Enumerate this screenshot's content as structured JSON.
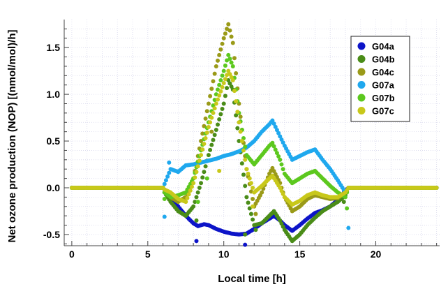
{
  "chart_data": {
    "type": "scatter",
    "title": "",
    "xlabel": "Local time [h]",
    "ylabel": "Net ozone production (NOP) [(nmol/mol)/h]",
    "xlim": [
      -0.5,
      24.2
    ],
    "ylim": [
      -0.62,
      1.8
    ],
    "x_ticks": [
      0,
      5,
      10,
      15,
      20
    ],
    "y_ticks": [
      -0.5,
      0.0,
      0.5,
      1.0,
      1.5
    ],
    "x_tick_labels": [
      "0",
      "5",
      "10",
      "15",
      "20"
    ],
    "y_tick_labels": [
      "-0.5",
      "0.0",
      "0.5",
      "1.0",
      "1.5"
    ],
    "grid": true,
    "legend_position": "top-right",
    "series": [
      {
        "name": "G04a",
        "color": "#0d14c8",
        "points": [
          [
            0,
            0
          ],
          [
            1,
            0
          ],
          [
            2,
            0
          ],
          [
            3,
            0
          ],
          [
            4,
            0
          ],
          [
            5,
            0
          ],
          [
            6,
            0
          ],
          [
            6.1,
            -0.02
          ],
          [
            6.5,
            -0.1
          ],
          [
            7,
            -0.2
          ],
          [
            7.5,
            -0.3
          ],
          [
            8,
            -0.38
          ],
          [
            8.3,
            -0.41
          ],
          [
            8.7,
            -0.39
          ],
          [
            9,
            -0.4
          ],
          [
            9.5,
            -0.44
          ],
          [
            10,
            -0.47
          ],
          [
            10.5,
            -0.49
          ],
          [
            11,
            -0.5
          ],
          [
            11.5,
            -0.49
          ],
          [
            12,
            -0.44
          ],
          [
            12.5,
            -0.38
          ],
          [
            13,
            -0.33
          ],
          [
            13.3,
            -0.3
          ],
          [
            13.7,
            -0.35
          ],
          [
            14,
            -0.4
          ],
          [
            14.5,
            -0.46
          ],
          [
            15,
            -0.4
          ],
          [
            15.5,
            -0.33
          ],
          [
            16,
            -0.27
          ],
          [
            16.5,
            -0.24
          ],
          [
            17,
            -0.2
          ],
          [
            17.5,
            -0.13
          ],
          [
            18,
            -0.03
          ],
          [
            18.2,
            0
          ],
          [
            19,
            0
          ],
          [
            20,
            0
          ],
          [
            21,
            0
          ],
          [
            22,
            0
          ],
          [
            23,
            0
          ],
          [
            24,
            0
          ]
        ],
        "outliers": [
          [
            6.1,
            -0.05
          ],
          [
            8.2,
            -0.57
          ],
          [
            11.4,
            -0.61
          ]
        ]
      },
      {
        "name": "G04b",
        "color": "#4a8c18",
        "points": [
          [
            0,
            0
          ],
          [
            1,
            0
          ],
          [
            2,
            0
          ],
          [
            3,
            0
          ],
          [
            4,
            0
          ],
          [
            5,
            0
          ],
          [
            6,
            0
          ],
          [
            6.1,
            -0.05
          ],
          [
            6.5,
            -0.15
          ],
          [
            7,
            -0.25
          ],
          [
            7.5,
            -0.3
          ],
          [
            8,
            -0.2
          ],
          [
            8.5,
            0.05
          ],
          [
            9,
            0.35
          ],
          [
            9.5,
            0.62
          ],
          [
            10,
            0.9
          ],
          [
            10.3,
            1.15
          ],
          [
            10.6,
            1.05
          ],
          [
            11,
            0.5
          ],
          [
            11.5,
            -0.1
          ],
          [
            12,
            -0.4
          ],
          [
            12.5,
            -0.38
          ],
          [
            13,
            -0.3
          ],
          [
            13.3,
            -0.25
          ],
          [
            13.7,
            -0.35
          ],
          [
            14,
            -0.45
          ],
          [
            14.5,
            -0.57
          ],
          [
            15,
            -0.5
          ],
          [
            15.5,
            -0.4
          ],
          [
            16,
            -0.32
          ],
          [
            16.5,
            -0.25
          ],
          [
            17,
            -0.2
          ],
          [
            17.5,
            -0.15
          ],
          [
            18,
            -0.08
          ],
          [
            18.2,
            0
          ],
          [
            19,
            0
          ],
          [
            20,
            0
          ],
          [
            21,
            0
          ],
          [
            22,
            0
          ],
          [
            23,
            0
          ],
          [
            24,
            0
          ]
        ],
        "outliers": [
          [
            8.2,
            -0.35
          ],
          [
            11.4,
            -0.5
          ],
          [
            12.1,
            -0.45
          ],
          [
            17.9,
            -0.15
          ]
        ]
      },
      {
        "name": "G04c",
        "color": "#9a9a18",
        "points": [
          [
            0,
            0
          ],
          [
            1,
            0
          ],
          [
            2,
            0
          ],
          [
            3,
            0
          ],
          [
            4,
            0
          ],
          [
            5,
            0
          ],
          [
            6,
            0
          ],
          [
            6.1,
            -0.02
          ],
          [
            6.5,
            -0.1
          ],
          [
            7,
            -0.15
          ],
          [
            7.5,
            -0.1
          ],
          [
            8,
            0.1
          ],
          [
            8.5,
            0.5
          ],
          [
            9,
            0.9
          ],
          [
            9.5,
            1.3
          ],
          [
            10,
            1.6
          ],
          [
            10.3,
            1.75
          ],
          [
            10.6,
            1.55
          ],
          [
            11,
            0.9
          ],
          [
            11.5,
            0.2
          ],
          [
            12,
            -0.2
          ],
          [
            12.5,
            -0.05
          ],
          [
            13,
            0.15
          ],
          [
            13.2,
            0.21
          ],
          [
            13.7,
            0.05
          ],
          [
            14,
            -0.1
          ],
          [
            14.5,
            -0.25
          ],
          [
            15,
            -0.2
          ],
          [
            15.5,
            -0.12
          ],
          [
            16,
            -0.08
          ],
          [
            16.5,
            -0.1
          ],
          [
            17,
            -0.12
          ],
          [
            17.5,
            -0.11
          ],
          [
            18,
            -0.05
          ],
          [
            18.2,
            0
          ],
          [
            19,
            0
          ],
          [
            20,
            0
          ],
          [
            21,
            0
          ],
          [
            22,
            0
          ],
          [
            23,
            0
          ],
          [
            24,
            0
          ]
        ],
        "outliers": [
          [
            12.1,
            -0.28
          ],
          [
            9.2,
            0.6
          ]
        ]
      },
      {
        "name": "G07a",
        "color": "#1fa8ee",
        "points": [
          [
            0,
            0
          ],
          [
            1,
            0
          ],
          [
            2,
            0
          ],
          [
            3,
            0
          ],
          [
            4,
            0
          ],
          [
            5,
            0
          ],
          [
            6,
            0
          ],
          [
            6.2,
            0.08
          ],
          [
            6.5,
            0.2
          ],
          [
            7,
            0.17
          ],
          [
            7.5,
            0.24
          ],
          [
            8,
            0.25
          ],
          [
            8.5,
            0.27
          ],
          [
            9,
            0.29
          ],
          [
            9.5,
            0.31
          ],
          [
            10,
            0.34
          ],
          [
            10.5,
            0.36
          ],
          [
            11,
            0.39
          ],
          [
            11.5,
            0.43
          ],
          [
            12,
            0.5
          ],
          [
            12.5,
            0.6
          ],
          [
            13,
            0.68
          ],
          [
            13.2,
            0.72
          ],
          [
            13.7,
            0.55
          ],
          [
            14,
            0.45
          ],
          [
            14.5,
            0.3
          ],
          [
            15,
            0.34
          ],
          [
            15.5,
            0.38
          ],
          [
            16,
            0.41
          ],
          [
            16.5,
            0.3
          ],
          [
            17,
            0.2
          ],
          [
            17.5,
            0.08
          ],
          [
            18,
            -0.05
          ],
          [
            18.2,
            0
          ],
          [
            19,
            0
          ],
          [
            20,
            0
          ],
          [
            21,
            0
          ],
          [
            22,
            0
          ],
          [
            23,
            0
          ],
          [
            24,
            0
          ]
        ],
        "outliers": [
          [
            6.1,
            -0.31
          ],
          [
            6.4,
            0.27
          ],
          [
            18.2,
            -0.43
          ]
        ]
      },
      {
        "name": "G07b",
        "color": "#5cc81e",
        "points": [
          [
            0,
            0
          ],
          [
            1,
            0
          ],
          [
            2,
            0
          ],
          [
            3,
            0
          ],
          [
            4,
            0
          ],
          [
            5,
            0
          ],
          [
            6,
            0
          ],
          [
            6.1,
            -0.05
          ],
          [
            6.5,
            -0.1
          ],
          [
            7,
            -0.08
          ],
          [
            7.5,
            -0.05
          ],
          [
            8,
            0.1
          ],
          [
            8.5,
            0.4
          ],
          [
            9,
            0.7
          ],
          [
            9.5,
            1.0
          ],
          [
            10,
            1.25
          ],
          [
            10.3,
            1.42
          ],
          [
            10.6,
            1.3
          ],
          [
            11,
            0.8
          ],
          [
            11.5,
            0.35
          ],
          [
            12,
            0.25
          ],
          [
            12.5,
            0.35
          ],
          [
            13,
            0.45
          ],
          [
            13.2,
            0.48
          ],
          [
            13.7,
            0.3
          ],
          [
            14,
            0.15
          ],
          [
            14.5,
            0.05
          ],
          [
            15,
            0.1
          ],
          [
            15.5,
            0.15
          ],
          [
            16,
            0.18
          ],
          [
            16.5,
            0.1
          ],
          [
            17,
            0.02
          ],
          [
            17.5,
            -0.05
          ],
          [
            18,
            -0.1
          ],
          [
            18.2,
            0
          ],
          [
            19,
            0
          ],
          [
            20,
            0
          ],
          [
            21,
            0
          ],
          [
            22,
            0
          ],
          [
            23,
            0
          ],
          [
            24,
            0
          ]
        ],
        "outliers": [
          [
            6.1,
            -0.12
          ],
          [
            8.3,
            -0.15
          ],
          [
            8.9,
            0.1
          ],
          [
            18.1,
            -0.22
          ]
        ]
      },
      {
        "name": "G07c",
        "color": "#c8c81a",
        "points": [
          [
            0,
            0
          ],
          [
            1,
            0
          ],
          [
            2,
            0
          ],
          [
            3,
            0
          ],
          [
            4,
            0
          ],
          [
            5,
            0
          ],
          [
            6,
            0
          ],
          [
            6.1,
            -0.02
          ],
          [
            6.5,
            -0.05
          ],
          [
            7,
            -0.12
          ],
          [
            7.5,
            -0.15
          ],
          [
            8,
            0.05
          ],
          [
            8.5,
            0.35
          ],
          [
            9,
            0.65
          ],
          [
            9.5,
            0.9
          ],
          [
            10,
            1.12
          ],
          [
            10.3,
            1.25
          ],
          [
            10.6,
            1.15
          ],
          [
            11,
            0.7
          ],
          [
            11.5,
            0.2
          ],
          [
            12,
            -0.05
          ],
          [
            12.5,
            0.02
          ],
          [
            13,
            0.1
          ],
          [
            13.2,
            0.13
          ],
          [
            13.7,
            0.0
          ],
          [
            14,
            -0.1
          ],
          [
            14.5,
            -0.18
          ],
          [
            15,
            -0.14
          ],
          [
            15.5,
            -0.08
          ],
          [
            16,
            -0.05
          ],
          [
            16.5,
            -0.08
          ],
          [
            17,
            -0.1
          ],
          [
            17.5,
            -0.1
          ],
          [
            18,
            -0.05
          ],
          [
            18.2,
            0
          ],
          [
            19,
            0
          ],
          [
            20,
            0
          ],
          [
            21,
            0
          ],
          [
            22,
            0
          ],
          [
            23,
            0
          ],
          [
            24,
            0
          ]
        ],
        "outliers": [
          [
            9.7,
            0.18
          ],
          [
            11.9,
            -0.2
          ]
        ]
      }
    ]
  }
}
